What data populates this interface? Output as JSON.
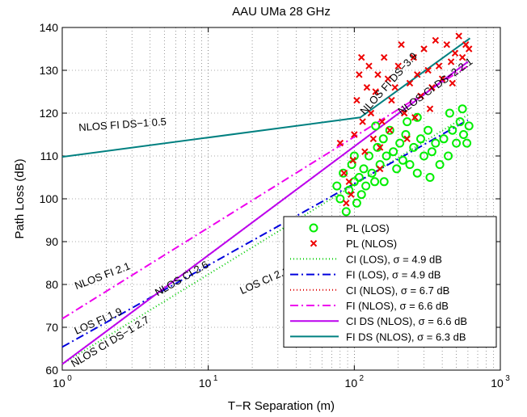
{
  "chart_data": {
    "type": "scatter",
    "title": "AAU UMa 28 GHz",
    "xlabel": "T−R Separation (m)",
    "ylabel": "Path Loss (dB)",
    "xscale": "log",
    "xlim": [
      1,
      1000
    ],
    "ylim": [
      60,
      140
    ],
    "x_ticks": [
      1,
      10,
      100,
      1000
    ],
    "x_tick_labels": [
      [
        "10",
        "0"
      ],
      [
        "10",
        "1"
      ],
      [
        "10",
        "2"
      ],
      [
        "10",
        "3"
      ]
    ],
    "y_ticks": [
      60,
      70,
      80,
      90,
      100,
      110,
      120,
      130,
      140
    ],
    "y_tick_labels": [
      "60",
      "70",
      "80",
      "90",
      "100",
      "110",
      "120",
      "130",
      "140"
    ],
    "grid": "dotted, major and minor",
    "legend_position": "bottom-right",
    "scatter_series": [
      {
        "name": "PL (LOS)",
        "marker": "circle",
        "color": "#00ee00",
        "points": [
          [
            76,
            103
          ],
          [
            80,
            100
          ],
          [
            84,
            106
          ],
          [
            88,
            97
          ],
          [
            92,
            102
          ],
          [
            96,
            108
          ],
          [
            100,
            104
          ],
          [
            104,
            99
          ],
          [
            108,
            105
          ],
          [
            112,
            101
          ],
          [
            116,
            107
          ],
          [
            120,
            103
          ],
          [
            126,
            110
          ],
          [
            132,
            106
          ],
          [
            138,
            104
          ],
          [
            144,
            112
          ],
          [
            150,
            108
          ],
          [
            158,
            114
          ],
          [
            166,
            110
          ],
          [
            175,
            116
          ],
          [
            185,
            111
          ],
          [
            195,
            107
          ],
          [
            205,
            113
          ],
          [
            215,
            109
          ],
          [
            225,
            115
          ],
          [
            240,
            108
          ],
          [
            255,
            112
          ],
          [
            270,
            106
          ],
          [
            285,
            114
          ],
          [
            300,
            110
          ],
          [
            320,
            116
          ],
          [
            340,
            111
          ],
          [
            360,
            113
          ],
          [
            385,
            108
          ],
          [
            410,
            114
          ],
          [
            440,
            110
          ],
          [
            470,
            116
          ],
          [
            500,
            113
          ],
          [
            530,
            118
          ],
          [
            560,
            115
          ],
          [
            590,
            113
          ],
          [
            610,
            117
          ],
          [
            100,
            110
          ],
          [
            140,
            117
          ],
          [
            160,
            104
          ],
          [
            230,
            118
          ],
          [
            270,
            119
          ],
          [
            330,
            105
          ],
          [
            450,
            120
          ],
          [
            550,
            121
          ]
        ]
      },
      {
        "name": "PL (NLOS)",
        "marker": "x",
        "color": "#ee0000",
        "points": [
          [
            80,
            113
          ],
          [
            85,
            106
          ],
          [
            88,
            99
          ],
          [
            92,
            104
          ],
          [
            95,
            101
          ],
          [
            98,
            109
          ],
          [
            100,
            115
          ],
          [
            104,
            123
          ],
          [
            108,
            129
          ],
          [
            112,
            133
          ],
          [
            114,
            118
          ],
          [
            118,
            111
          ],
          [
            122,
            126
          ],
          [
            126,
            131
          ],
          [
            130,
            120
          ],
          [
            135,
            114
          ],
          [
            140,
            125
          ],
          [
            145,
            129
          ],
          [
            150,
            107
          ],
          [
            155,
            118
          ],
          [
            160,
            133
          ],
          [
            170,
            128
          ],
          [
            180,
            123
          ],
          [
            190,
            126
          ],
          [
            200,
            131
          ],
          [
            210,
            136
          ],
          [
            220,
            120
          ],
          [
            230,
            114
          ],
          [
            240,
            127
          ],
          [
            255,
            133
          ],
          [
            270,
            129
          ],
          [
            285,
            124
          ],
          [
            300,
            135
          ],
          [
            320,
            130
          ],
          [
            340,
            126
          ],
          [
            360,
            137
          ],
          [
            380,
            131
          ],
          [
            400,
            128
          ],
          [
            430,
            136
          ],
          [
            460,
            132
          ],
          [
            490,
            134
          ],
          [
            520,
            138
          ],
          [
            550,
            133
          ],
          [
            580,
            136
          ],
          [
            610,
            135
          ],
          [
            150,
            112
          ],
          [
            175,
            116
          ],
          [
            260,
            119
          ],
          [
            330,
            121
          ],
          [
            470,
            127
          ]
        ]
      }
    ],
    "line_series": [
      {
        "name": "CI (LOS), σ = 4.9 dB",
        "color": "#00cc00",
        "dash": "1,3",
        "x": [
          1,
          600
        ],
        "y": [
          61.4,
          119.6
        ]
      },
      {
        "name": "FI (LOS), σ = 4.9 dB",
        "color": "#0000dd",
        "dash": "10,4,2,4",
        "x": [
          1,
          600
        ],
        "y": [
          65.4,
          118.4
        ]
      },
      {
        "name": "CI (NLOS), σ = 6.7 dB",
        "color": "#dd0000",
        "dash": "1,3",
        "x": [
          1,
          600
        ],
        "y": [
          61.4,
          132.0
        ]
      },
      {
        "name": "FI (NLOS), σ = 6.6 dB",
        "color": "#ee00ee",
        "dash": "10,4,2,4",
        "x": [
          1,
          600
        ],
        "y": [
          72.0,
          131.0
        ]
      },
      {
        "name": "CI DS (NLOS), σ = 6.6 dB",
        "color": "#bb00ee",
        "dash": "",
        "x": [
          1,
          600
        ],
        "y": [
          61.4,
          132.0
        ]
      },
      {
        "name": "FI DS (NLOS), σ = 6.3 dB",
        "color": "#008080",
        "dash": "",
        "x": [
          1,
          110,
          620
        ],
        "y": [
          109.8,
          119.0,
          137.5
        ]
      }
    ],
    "annotations": [
      {
        "text": "NLOS FI DS−1 0.5",
        "x": 1.3,
        "y": 115.8,
        "angle": -4
      },
      {
        "text": "NLOS FI DS−3.9",
        "x": 118,
        "y": 119.5,
        "angle": -48
      },
      {
        "text": "NLOS CI DS−2.2.1",
        "x": 210,
        "y": 119.5,
        "angle": -36
      },
      {
        "text": "NLOS CI 2.6",
        "x": 4.5,
        "y": 77.2,
        "angle": -30
      },
      {
        "text": "LOS CI 2.1",
        "x": 17,
        "y": 77.7,
        "angle": -24
      },
      {
        "text": "NLOS FI 2.1",
        "x": 1.25,
        "y": 78.8,
        "angle": -21
      },
      {
        "text": "LOS FI 1.9",
        "x": 1.25,
        "y": 68.3,
        "angle": -24
      },
      {
        "text": "NLOS CI DS−1 2.7",
        "x": 1.2,
        "y": 60.6,
        "angle": -31
      }
    ]
  }
}
